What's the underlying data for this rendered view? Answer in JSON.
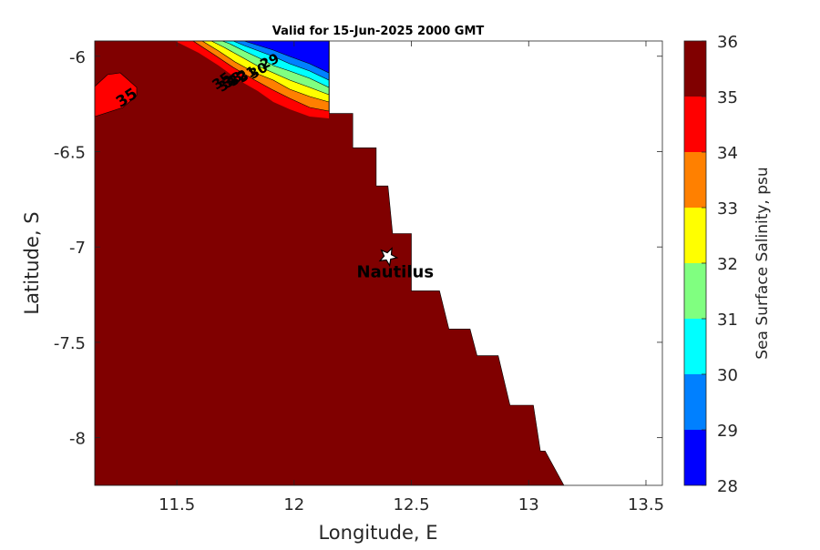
{
  "chart_data": {
    "type": "heatmap",
    "title": "Valid for 15-Jun-2025 2000 GMT",
    "xlabel": "Longitude, E",
    "ylabel": "Latitude, S",
    "xlim": [
      11.15,
      13.57
    ],
    "ylim": [
      -8.25,
      -5.92
    ],
    "x_ticks": [
      11.5,
      12,
      12.5,
      13,
      13.5
    ],
    "x_tick_labels": [
      "11.5",
      "12",
      "12.5",
      "13",
      "13.5"
    ],
    "y_ticks": [
      -6,
      -6.5,
      -7,
      -7.5,
      -8
    ],
    "y_tick_labels": [
      "-6",
      "-6.5",
      "-7",
      "-7.5",
      "-8"
    ],
    "land_color": "#ffffff",
    "dominant_value": 36,
    "colorbar": {
      "label": "Sea Surface Salinity, psu",
      "levels": [
        28,
        29,
        30,
        31,
        32,
        33,
        34,
        35,
        36
      ],
      "level_labels": [
        "28",
        "29",
        "30",
        "31",
        "32",
        "33",
        "34",
        "35",
        "36"
      ],
      "colors": [
        "#0000ff",
        "#0080ff",
        "#00ffff",
        "#80ff80",
        "#ffff00",
        "#ff8000",
        "#ff0000",
        "#800000"
      ]
    },
    "coastline_lat": [
      -5.92,
      -6.3,
      -6.3,
      -6.48,
      -6.48,
      -6.68,
      -6.68,
      -6.93,
      -6.93,
      -7.23,
      -7.23,
      -7.43,
      -7.43,
      -7.57,
      -7.57,
      -7.83,
      -7.83,
      -8.07,
      -8.07,
      -8.25
    ],
    "coastline_lon": [
      12.15,
      12.15,
      12.25,
      12.25,
      12.35,
      12.35,
      12.4,
      12.42,
      12.5,
      12.5,
      12.62,
      12.66,
      12.75,
      12.78,
      12.87,
      12.92,
      13.02,
      13.05,
      13.07,
      13.15
    ],
    "station": {
      "name": "Nautilus",
      "lon": 12.4,
      "lat": -7.05
    },
    "contour_labels": [
      "35",
      "35",
      "29",
      "30",
      "31",
      "32",
      "33",
      "34"
    ]
  }
}
